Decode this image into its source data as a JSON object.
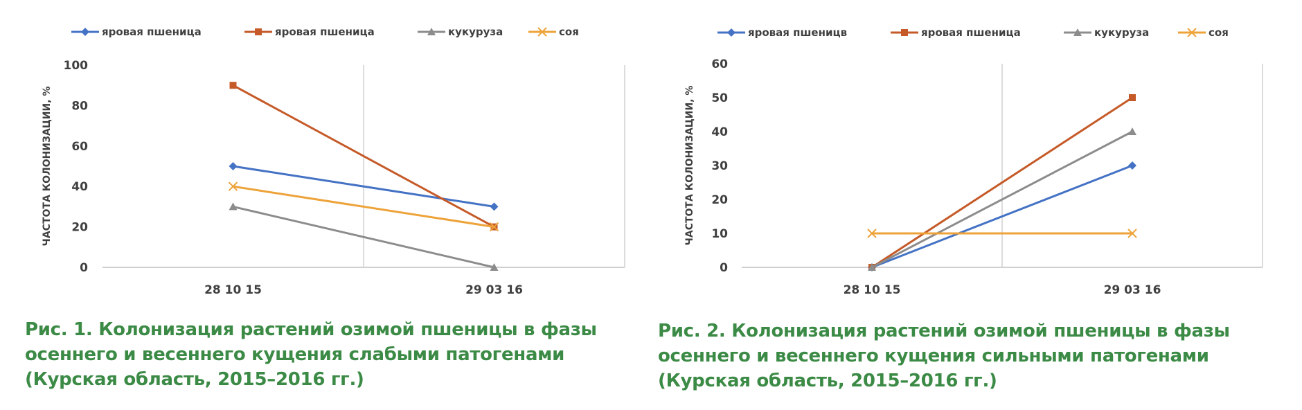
{
  "chart_data": [
    {
      "type": "line",
      "categories": [
        "28 10 15",
        "29 03 16"
      ],
      "series": [
        {
          "name": "яровая пшеница",
          "values": [
            50,
            30
          ],
          "color": "#4472c4",
          "marker": "diamond"
        },
        {
          "name": "яровая пшеница",
          "values": [
            90,
            20
          ],
          "color": "#c55a28",
          "marker": "square"
        },
        {
          "name": "кукуруза",
          "values": [
            30,
            0
          ],
          "color": "#8c8c8c",
          "marker": "triangle"
        },
        {
          "name": "соя",
          "values": [
            40,
            20
          ],
          "color": "#eda33a",
          "marker": "x"
        }
      ],
      "ylabel": "ЧАСТОТА КОЛОНИЗАЦИИ, %",
      "ylim": [
        0,
        100
      ],
      "yticks": [
        0,
        20,
        40,
        60,
        80,
        100
      ],
      "grid": "vertical separator between categories",
      "legend": "top",
      "caption": [
        "Рис. 1. Колонизация растений озимой пшеницы в фазы",
        "осеннего  и весеннего кущения слабыми патогенами",
        "(Курская область, 2015–2016 гг.)"
      ]
    },
    {
      "type": "line",
      "categories": [
        "28 10 15",
        "29 03 16"
      ],
      "series": [
        {
          "name": "яровая пшеницв",
          "values": [
            0,
            30
          ],
          "color": "#4472c4",
          "marker": "diamond"
        },
        {
          "name": "яровая пшеница",
          "values": [
            0,
            50
          ],
          "color": "#c55a28",
          "marker": "square"
        },
        {
          "name": "кукуруза",
          "values": [
            0,
            40
          ],
          "color": "#8c8c8c",
          "marker": "triangle"
        },
        {
          "name": "соя",
          "values": [
            10,
            10
          ],
          "color": "#eda33a",
          "marker": "x"
        }
      ],
      "ylabel": "ЧАСТОТА КОЛОНИЗАЦИИ, %",
      "ylim": [
        0,
        60
      ],
      "yticks": [
        0,
        10,
        20,
        30,
        40,
        50,
        60
      ],
      "grid": "vertical separator between categories",
      "legend": "top",
      "caption": [
        "Рис. 2. Колонизация растений озимой пшеницы в фазы",
        "осеннего  и весеннего кущения сильными патогенами",
        "(Курская область, 2015–2016 гг.)"
      ]
    }
  ]
}
